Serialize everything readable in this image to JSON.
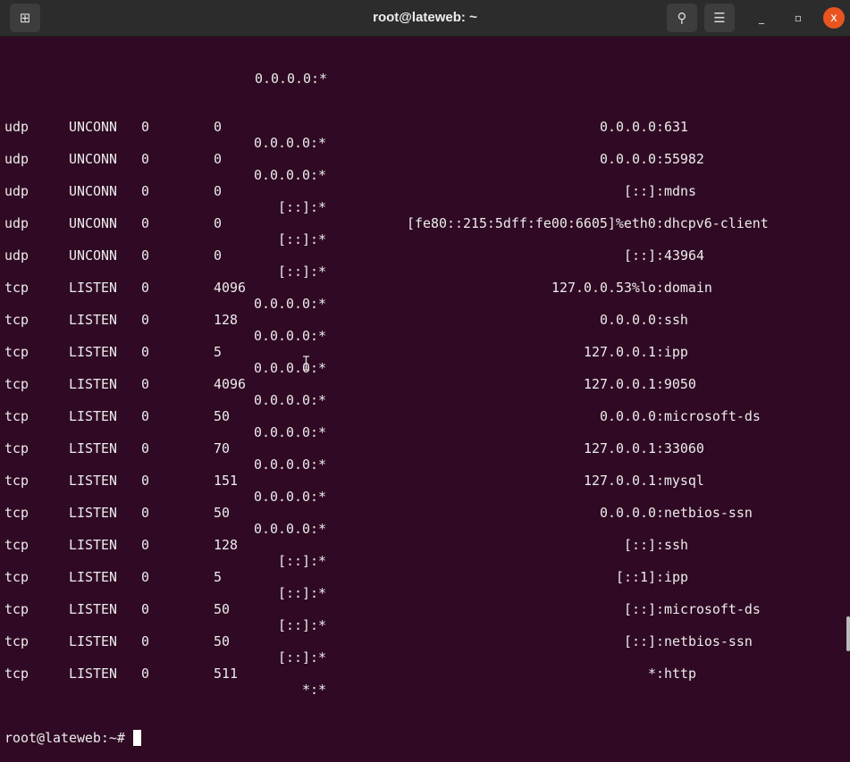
{
  "window": {
    "title": "root@lateweb: ~",
    "new_tab_icon": "new-tab-icon",
    "search_icon": "search-icon",
    "menu_icon": "hamburger-menu-icon",
    "minimize": "_",
    "maximize": "▫",
    "close": "x"
  },
  "terminal": {
    "first_peer": "0.0.0.0:*",
    "rows": [
      {
        "proto": "udp",
        "state": "UNCONN",
        "recv": "0",
        "send": "0",
        "local": "0.0.0.0:631",
        "peer": "0.0.0.0:*"
      },
      {
        "proto": "udp",
        "state": "UNCONN",
        "recv": "0",
        "send": "0",
        "local": "0.0.0.0:55982",
        "peer": "0.0.0.0:*"
      },
      {
        "proto": "udp",
        "state": "UNCONN",
        "recv": "0",
        "send": "0",
        "local": "[::]:mdns",
        "peer": "[::]:*"
      },
      {
        "proto": "udp",
        "state": "UNCONN",
        "recv": "0",
        "send": "0",
        "local": "[fe80::215:5dff:fe00:6605]%eth0:dhcpv6-client",
        "peer": "[::]:*"
      },
      {
        "proto": "udp",
        "state": "UNCONN",
        "recv": "0",
        "send": "0",
        "local": "[::]:43964",
        "peer": "[::]:*"
      },
      {
        "proto": "tcp",
        "state": "LISTEN",
        "recv": "0",
        "send": "4096",
        "local": "127.0.0.53%lo:domain",
        "peer": "0.0.0.0:*"
      },
      {
        "proto": "tcp",
        "state": "LISTEN",
        "recv": "0",
        "send": "128",
        "local": "0.0.0.0:ssh",
        "peer": "0.0.0.0:*"
      },
      {
        "proto": "tcp",
        "state": "LISTEN",
        "recv": "0",
        "send": "5",
        "local": "127.0.0.1:ipp",
        "peer": "0.0.0.0:*"
      },
      {
        "proto": "tcp",
        "state": "LISTEN",
        "recv": "0",
        "send": "4096",
        "local": "127.0.0.1:9050",
        "peer": "0.0.0.0:*"
      },
      {
        "proto": "tcp",
        "state": "LISTEN",
        "recv": "0",
        "send": "50",
        "local": "0.0.0.0:microsoft-ds",
        "peer": "0.0.0.0:*"
      },
      {
        "proto": "tcp",
        "state": "LISTEN",
        "recv": "0",
        "send": "70",
        "local": "127.0.0.1:33060",
        "peer": "0.0.0.0:*"
      },
      {
        "proto": "tcp",
        "state": "LISTEN",
        "recv": "0",
        "send": "151",
        "local": "127.0.0.1:mysql",
        "peer": "0.0.0.0:*"
      },
      {
        "proto": "tcp",
        "state": "LISTEN",
        "recv": "0",
        "send": "50",
        "local": "0.0.0.0:netbios-ssn",
        "peer": "0.0.0.0:*"
      },
      {
        "proto": "tcp",
        "state": "LISTEN",
        "recv": "0",
        "send": "128",
        "local": "[::]:ssh",
        "peer": "[::]:*"
      },
      {
        "proto": "tcp",
        "state": "LISTEN",
        "recv": "0",
        "send": "5",
        "local": "[::1]:ipp",
        "peer": "[::]:*"
      },
      {
        "proto": "tcp",
        "state": "LISTEN",
        "recv": "0",
        "send": "50",
        "local": "[::]:microsoft-ds",
        "peer": "[::]:*"
      },
      {
        "proto": "tcp",
        "state": "LISTEN",
        "recv": "0",
        "send": "50",
        "local": "[::]:netbios-ssn",
        "peer": "[::]:*"
      },
      {
        "proto": "tcp",
        "state": "LISTEN",
        "recv": "0",
        "send": "511",
        "local": "*:http",
        "peer": "*:*"
      }
    ],
    "prompt": "root@lateweb:~#"
  }
}
